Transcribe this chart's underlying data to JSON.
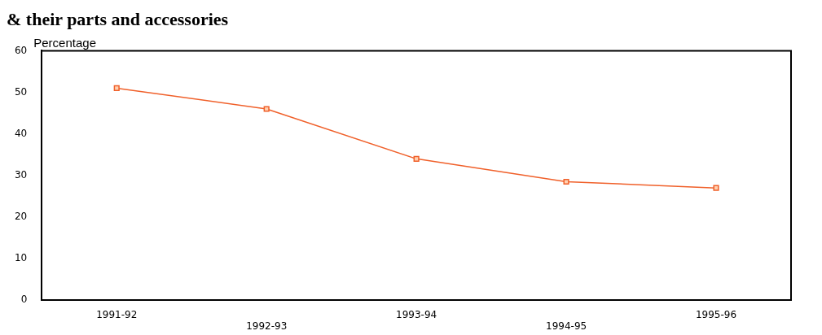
{
  "chart_data": {
    "type": "line",
    "title": "& their parts and accessories",
    "ylabel": "Percentage",
    "categories": [
      "1991-92",
      "1992-93",
      "1993-94",
      "1994-95",
      "1995-96"
    ],
    "series": [
      {
        "color": "#f0602a",
        "values": [
          51,
          46,
          34,
          28.5,
          27
        ]
      }
    ],
    "ylim": [
      0,
      60
    ],
    "yticks": [
      0,
      10,
      20,
      30,
      40,
      50,
      60
    ],
    "grid": false,
    "legend": false,
    "marker": "square",
    "line_style": "solid"
  }
}
